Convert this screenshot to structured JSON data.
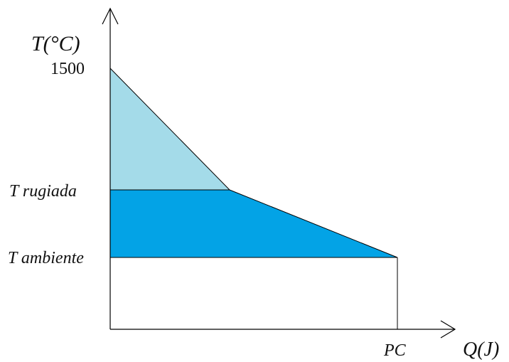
{
  "diagram": {
    "y_axis_label": "T(°C)",
    "x_axis_label": "Q(J)",
    "y_tick_top": "1500",
    "y_tick_dew": "T rugiada",
    "y_tick_ambient": "T ambiente",
    "x_tick_pc": "PC",
    "colors": {
      "upper_region": "#a4dbe9",
      "lower_region": "#03a3e6",
      "lines": "#000000"
    }
  }
}
